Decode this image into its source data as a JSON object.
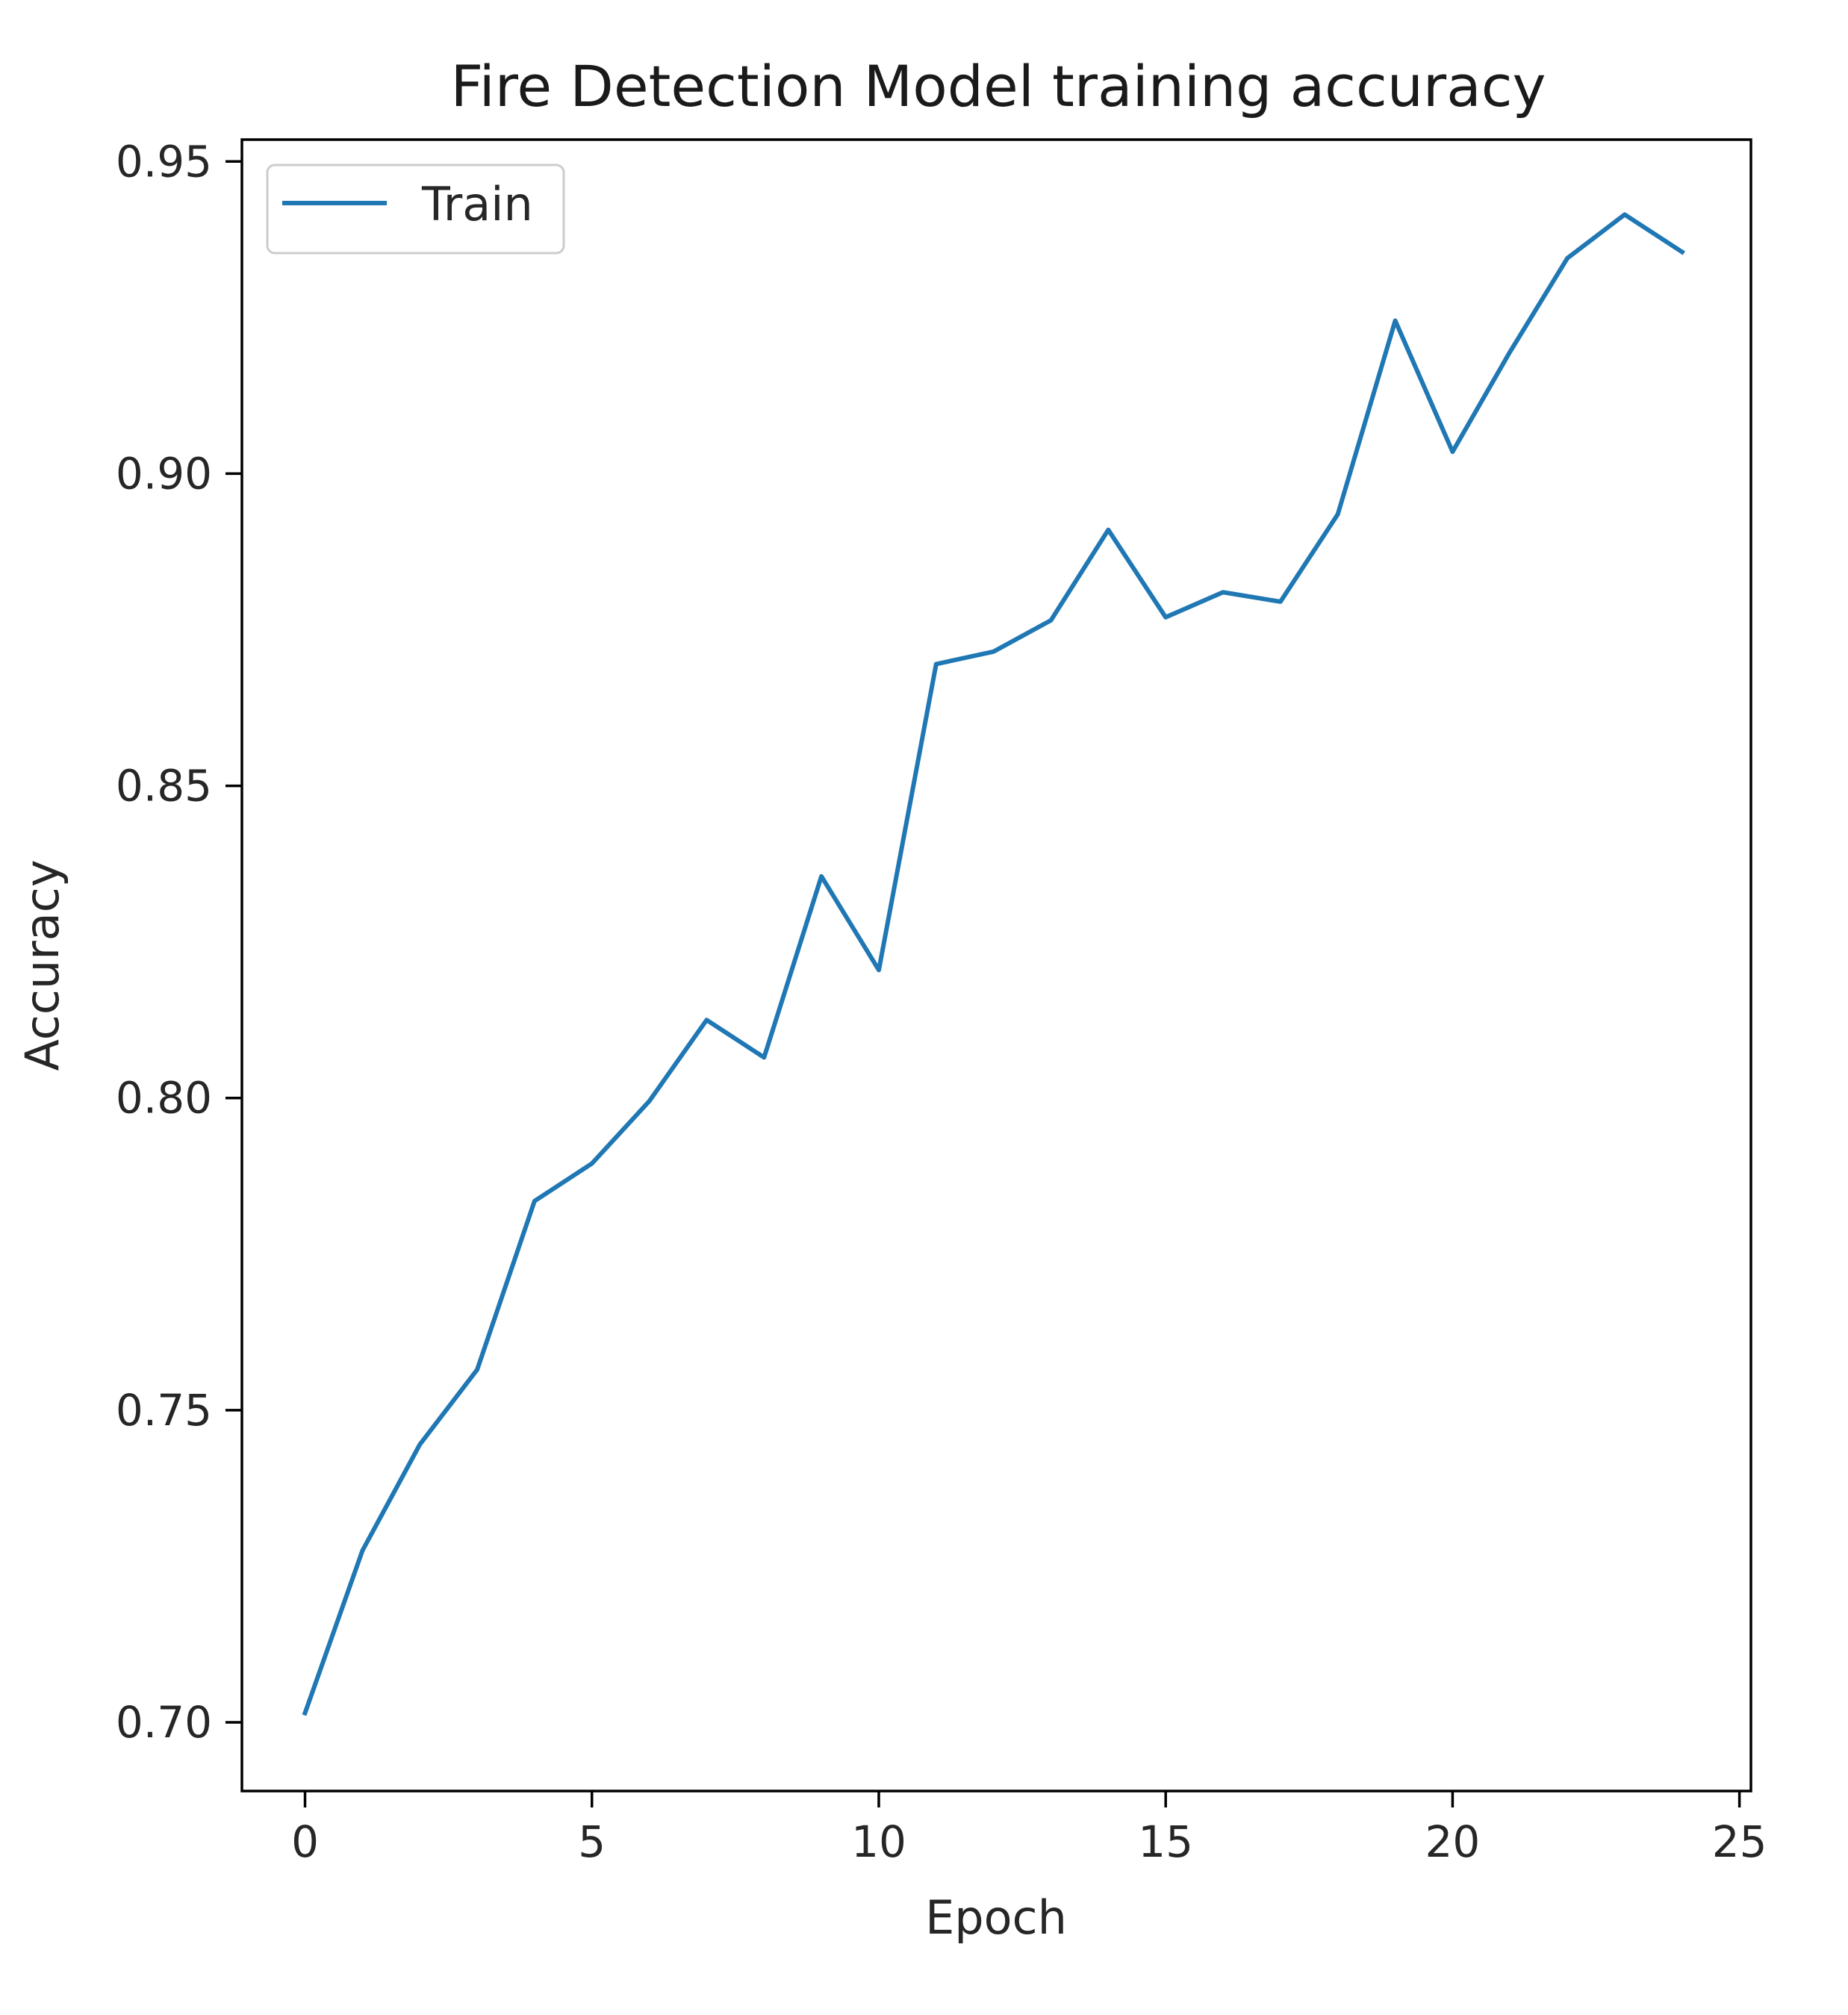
{
  "chart_data": {
    "type": "line",
    "title": "Fire Detection Model training accuracy",
    "xlabel": "Epoch",
    "ylabel": "Accuracy",
    "xlim": [
      -1.1,
      25.2
    ],
    "ylim": [
      0.689,
      0.9535
    ],
    "xticks": [
      0,
      5,
      10,
      15,
      20,
      25
    ],
    "yticks": [
      0.7,
      0.75,
      0.8,
      0.85,
      0.9,
      0.95
    ],
    "xtick_labels": [
      "0",
      "5",
      "10",
      "15",
      "20",
      "25"
    ],
    "ytick_labels": [
      "0.70",
      "0.75",
      "0.80",
      "0.85",
      "0.90",
      "0.95"
    ],
    "grid": false,
    "legend": {
      "position": "top-left"
    },
    "colors": {
      "series": "#1f77b4",
      "frame": "#000000"
    },
    "x": [
      0,
      1,
      2,
      3,
      4,
      5,
      6,
      7,
      8,
      9,
      10,
      11,
      12,
      13,
      14,
      15,
      16,
      17,
      18,
      19,
      20,
      21,
      22,
      23,
      24
    ],
    "series": [
      {
        "name": "Train",
        "values": [
          0.7015,
          0.7275,
          0.7445,
          0.7565,
          0.7835,
          0.7895,
          0.7995,
          0.8125,
          0.8065,
          0.8355,
          0.8205,
          0.8695,
          0.8715,
          0.8765,
          0.891,
          0.877,
          0.881,
          0.8795,
          0.8935,
          0.9245,
          0.9035,
          0.9195,
          0.9345,
          0.9415,
          0.9355
        ]
      }
    ]
  }
}
